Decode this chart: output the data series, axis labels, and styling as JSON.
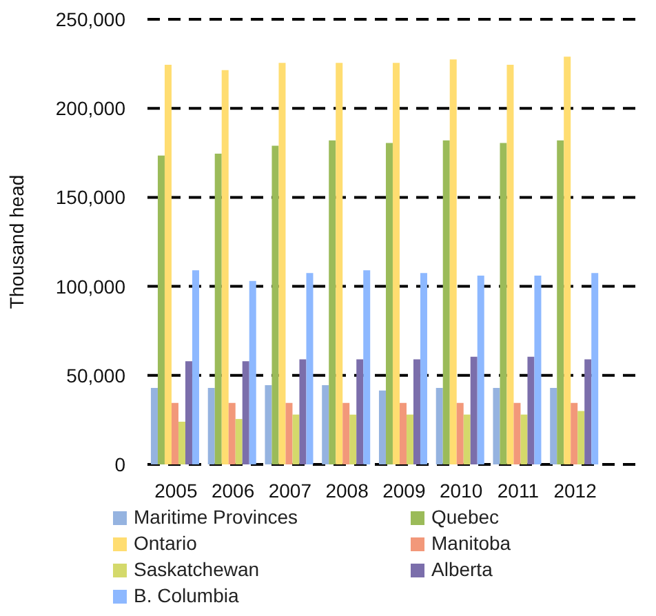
{
  "chart_data": {
    "type": "bar",
    "ylabel": "Thousand head",
    "categories": [
      "2005",
      "2006",
      "2007",
      "2008",
      "2009",
      "2010",
      "2011",
      "2012"
    ],
    "series": [
      {
        "name": "Maritime Provinces",
        "color": "#95b3e0",
        "values": [
          43000,
          43000,
          44500,
          44500,
          41500,
          43000,
          43000,
          43000
        ]
      },
      {
        "name": "Quebec",
        "color": "#9bbb59",
        "values": [
          173500,
          174500,
          179000,
          182000,
          180500,
          182000,
          180500,
          182000
        ]
      },
      {
        "name": "Ontario",
        "color": "#ffdd71",
        "values": [
          224500,
          221500,
          225500,
          225500,
          225500,
          227500,
          224500,
          229000
        ]
      },
      {
        "name": "Manitoba",
        "color": "#f2987a",
        "values": [
          34500,
          34500,
          34500,
          34500,
          34500,
          34500,
          34500,
          34500
        ]
      },
      {
        "name": "Saskatchewan",
        "color": "#d4d96b",
        "values": [
          24000,
          25500,
          28000,
          28000,
          28000,
          28000,
          28000,
          30000
        ]
      },
      {
        "name": "Alberta",
        "color": "#7b6eab",
        "values": [
          58000,
          58000,
          59000,
          59000,
          59000,
          60500,
          60500,
          59000
        ]
      },
      {
        "name": "B. Columbia",
        "color": "#8db8ff",
        "values": [
          109000,
          103000,
          107500,
          109000,
          107500,
          106000,
          106000,
          107500
        ]
      }
    ],
    "ylim": [
      0,
      250000
    ],
    "yticks": [
      {
        "value": 0,
        "label": "0"
      },
      {
        "value": 50000,
        "label": "50,000"
      },
      {
        "value": 100000,
        "label": "100,000"
      },
      {
        "value": 150000,
        "label": "150,000"
      },
      {
        "value": 200000,
        "label": "200,000"
      },
      {
        "value": 250000,
        "label": "250,000"
      }
    ],
    "grid": "y",
    "legend": "bottom"
  }
}
